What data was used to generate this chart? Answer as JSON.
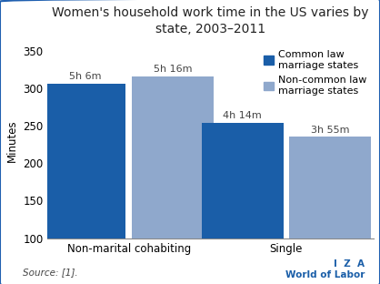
{
  "title": "Women's household work time in the US varies by\nstate, 2003–2011",
  "groups": [
    "Non-marital cohabiting",
    "Single"
  ],
  "series": [
    "Common law\nmarriage states",
    "Non-common law\nmarriage states"
  ],
  "values": [
    [
      306,
      316
    ],
    [
      254,
      235
    ]
  ],
  "bar_labels": [
    [
      "5h 6m",
      "5h 16m"
    ],
    [
      "4h 14m",
      "3h 55m"
    ]
  ],
  "colors": [
    "#1a5ea8",
    "#8fa8cc"
  ],
  "ylim": [
    100,
    360
  ],
  "yticks": [
    100,
    150,
    200,
    250,
    300,
    350
  ],
  "ylabel": "Minutes",
  "source_text": "Source: [1].",
  "iza_line1": "I  Z  A",
  "iza_line2": "World of Labor",
  "bar_width": 0.28,
  "background_color": "#ffffff",
  "border_color": "#2060b0",
  "title_fontsize": 10.0,
  "label_fontsize": 8.0,
  "tick_fontsize": 8.5,
  "legend_fontsize": 8.0,
  "group_centers": [
    0.28,
    0.82
  ]
}
